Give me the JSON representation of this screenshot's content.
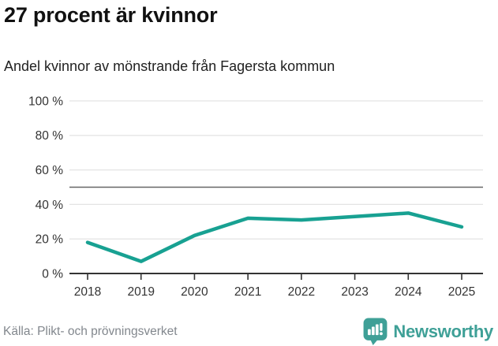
{
  "header": {
    "title": "27 procent är kvinnor",
    "subtitle": "Andel kvinnor av mönstrande från Fagersta kommun"
  },
  "chart_data": {
    "type": "line",
    "title": "27 procent är kvinnor",
    "subtitle": "Andel kvinnor av mönstrande från Fagersta kommun",
    "x": [
      "2018",
      "2019",
      "2020",
      "2021",
      "2022",
      "2023",
      "2024",
      "2025"
    ],
    "series": [
      {
        "name": "Andel kvinnor av mönstrande",
        "values": [
          18,
          7,
          22,
          32,
          31,
          33,
          35,
          27
        ]
      }
    ],
    "unit": "%",
    "ylim": [
      0,
      100
    ],
    "yticks": [
      0,
      20,
      40,
      60,
      80,
      100
    ],
    "ytick_labels": [
      "0 %",
      "20 %",
      "40 %",
      "60 %",
      "80 %",
      "100 %"
    ],
    "reference_line": 50,
    "grid": true,
    "legend": "none"
  },
  "footer": {
    "source": "Källa: Plikt- och prövningsverket",
    "brand": "Newsworthy"
  },
  "colors": {
    "line": "#18a192",
    "brand_teal": "#3fa097",
    "grid": "#e4e4e4",
    "reference_line": "#666666",
    "axis": "#333333",
    "tick_text": "#333333",
    "muted_text": "#82878d"
  }
}
